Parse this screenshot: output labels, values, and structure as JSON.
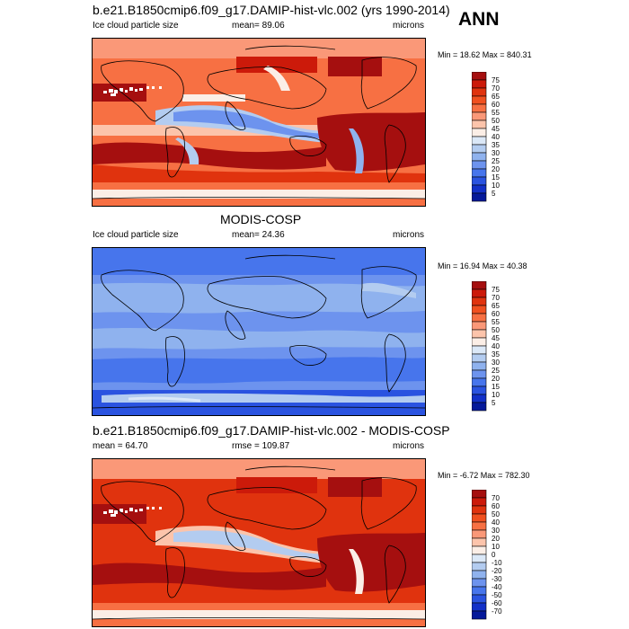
{
  "header": {
    "season": "ANN"
  },
  "panels": [
    {
      "title": "b.e21.B1850cmip6.f09_g17.DAMIP-hist-vlc.002 (yrs 1990-2014)",
      "left_label": "Ice cloud particle size",
      "mean_label": "mean=  89.06",
      "units": "microns",
      "minmax": "Min =  18.62 Max = 840.31",
      "levels": [
        "75",
        "70",
        "65",
        "60",
        "55",
        "50",
        "45",
        "40",
        "35",
        "30",
        "25",
        "20",
        "15",
        "10",
        "5"
      ],
      "colors": [
        "#a50f0f",
        "#cc1a0a",
        "#e0330e",
        "#f0501f",
        "#f77043",
        "#fa9878",
        "#fcc4ab",
        "#fbeee6",
        "#dbe8f7",
        "#b3ccf0",
        "#8fb2ee",
        "#6d93ee",
        "#4775ec",
        "#2a53e0",
        "#1230c8",
        "#05199a"
      ]
    },
    {
      "title": "MODIS-COSP",
      "left_label": "Ice cloud particle size",
      "mean_label": "mean=  24.36",
      "units": "microns",
      "minmax": "Min =  16.94 Max =  40.38",
      "levels": [
        "75",
        "70",
        "65",
        "60",
        "55",
        "50",
        "45",
        "40",
        "35",
        "30",
        "25",
        "20",
        "15",
        "10",
        "5"
      ],
      "colors": [
        "#a50f0f",
        "#cc1a0a",
        "#e0330e",
        "#f0501f",
        "#f77043",
        "#fa9878",
        "#fcc4ab",
        "#fbeee6",
        "#dbe8f7",
        "#b3ccf0",
        "#8fb2ee",
        "#6d93ee",
        "#4775ec",
        "#2a53e0",
        "#1230c8",
        "#05199a"
      ]
    },
    {
      "title": "b.e21.B1850cmip6.f09_g17.DAMIP-hist-vlc.002 - MODIS-COSP",
      "left_label": "mean =  64.70",
      "mean_label": "rmse = 109.87",
      "units": "microns",
      "minmax": "Min =  -6.72 Max = 782.30",
      "levels": [
        "70",
        "60",
        "50",
        "40",
        "30",
        "20",
        "10",
        "0",
        "-10",
        "-20",
        "-30",
        "-40",
        "-50",
        "-60",
        "-70"
      ],
      "colors": [
        "#a50f0f",
        "#cc1a0a",
        "#e0330e",
        "#f0501f",
        "#f77043",
        "#fa9878",
        "#fcc4ab",
        "#fbeee6",
        "#dbe8f7",
        "#b3ccf0",
        "#8fb2ee",
        "#6d93ee",
        "#4775ec",
        "#2a53e0",
        "#1230c8",
        "#05199a"
      ]
    }
  ],
  "chart_data": [
    {
      "type": "heatmap",
      "title": "b.e21.B1850cmip6.f09_g17.DAMIP-hist-vlc.002 (yrs 1990-2014)",
      "variable": "Ice cloud particle size",
      "units": "microns",
      "mean": 89.06,
      "min": 18.62,
      "max": 840.31,
      "colorbar_levels": [
        5,
        10,
        15,
        20,
        25,
        30,
        35,
        40,
        45,
        50,
        55,
        60,
        65,
        70,
        75
      ]
    },
    {
      "type": "heatmap",
      "title": "MODIS-COSP",
      "variable": "Ice cloud particle size",
      "units": "microns",
      "mean": 24.36,
      "min": 16.94,
      "max": 40.38,
      "colorbar_levels": [
        5,
        10,
        15,
        20,
        25,
        30,
        35,
        40,
        45,
        50,
        55,
        60,
        65,
        70,
        75
      ]
    },
    {
      "type": "heatmap",
      "title": "b.e21.B1850cmip6.f09_g17.DAMIP-hist-vlc.002 - MODIS-COSP",
      "units": "microns",
      "mean": 64.7,
      "rmse": 109.87,
      "min": -6.72,
      "max": 782.3,
      "colorbar_levels": [
        -70,
        -60,
        -50,
        -40,
        -30,
        -20,
        -10,
        0,
        10,
        20,
        30,
        40,
        50,
        60,
        70
      ]
    }
  ]
}
